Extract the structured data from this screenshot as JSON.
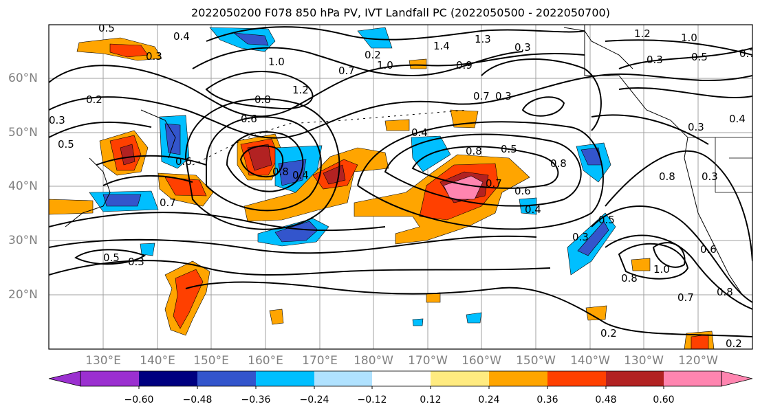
{
  "title": "2022050200 F078 850 hPa PV, IVT Landfall PC (2022050500 - 2022050700)",
  "lon_labels": [
    "130°E",
    "140°E",
    "150°E",
    "160°E",
    "170°E",
    "180°W",
    "170°W",
    "160°W",
    "150°W",
    "140°W",
    "130°W",
    "120°W"
  ],
  "lat_labels": [
    "60°N",
    "50°N",
    "40°N",
    "30°N",
    "20°N"
  ],
  "colorbar": {
    "colors": [
      "#9b30d0",
      "#000080",
      "#3355cc",
      "#00bfff",
      "#b0e2ff",
      "#ffffff",
      "#ffeb80",
      "#ffa500",
      "#ff4000",
      "#b22222",
      "#ff85b0"
    ],
    "tick_labels": [
      "−0.60",
      "−0.48",
      "−0.36",
      "−0.24",
      "−0.12",
      "0.12",
      "0.24",
      "0.36",
      "0.48",
      "0.60"
    ]
  },
  "contour_labels": [
    "0.5",
    "0.4",
    "0.3",
    "1.0",
    "1.4",
    "1.3",
    "0.3",
    "1.2",
    "1.0",
    "0.2",
    "0.3",
    "0.5",
    "0.7",
    "0.2",
    "1.0",
    "0.9",
    "0.7",
    "1.2",
    "0.8",
    "0.6",
    "0.3",
    "0.5",
    "0.7",
    "0.4",
    "0.5",
    "0.8",
    "0.3",
    "0.4",
    "0.6",
    "0.7",
    "0.8",
    "0.7",
    "0.6",
    "0.4",
    "0.5",
    "0.3",
    "0.5",
    "0.3",
    "0.8",
    "0.6",
    "0.8",
    "1.0",
    "0.7",
    "0.8",
    "0.2",
    "0.2",
    "0.4",
    "0.3",
    "0.8",
    "0.3"
  ]
}
